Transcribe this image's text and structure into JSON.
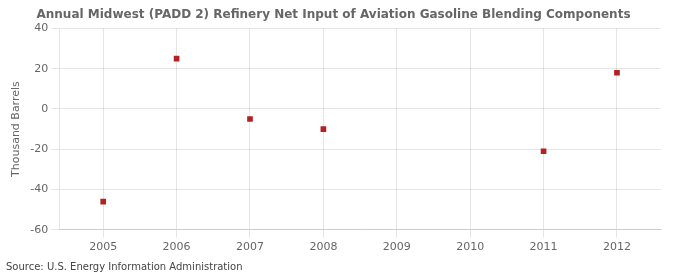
{
  "chart_data": {
    "type": "scatter",
    "title": "Annual Midwest (PADD 2) Refinery Net Input of Aviation Gasoline Blending Components",
    "y_label": "Thousand Barrels",
    "annotations": [
      "Source: U.S. Energy Information Administration"
    ],
    "x": [
      2005,
      2006,
      2007,
      2008,
      2011,
      2012
    ],
    "values": [
      -46,
      25,
      -5,
      -10,
      -21,
      18
    ],
    "color": "#b22222",
    "marker": "square",
    "xlim": [
      2004.4,
      2012.6
    ],
    "ylim": [
      -60,
      40
    ],
    "xticks": [
      2005,
      2006,
      2007,
      2008,
      2009,
      2010,
      2011,
      2012
    ],
    "yticks": [
      -60,
      -40,
      -20,
      0,
      20,
      40
    ],
    "grid": true
  }
}
